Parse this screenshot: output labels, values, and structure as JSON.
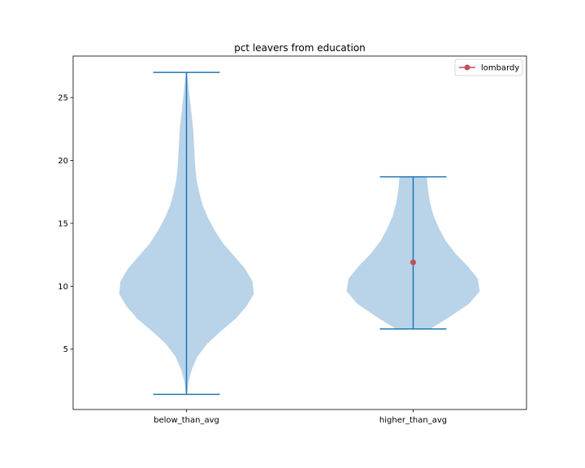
{
  "chart_data": {
    "type": "violin",
    "title": "pct leavers from education",
    "xlabel": "",
    "ylabel": "",
    "categories": [
      "below_than_avg",
      "higher_than_avg"
    ],
    "ylim": [
      0.2,
      28.3
    ],
    "yticks": [
      5,
      10,
      15,
      20,
      25
    ],
    "grid": false,
    "legend": {
      "placement": "top-right",
      "entries": [
        {
          "label": "lombardy",
          "color": "#c44e52",
          "marker": "circle"
        }
      ]
    },
    "violins": [
      {
        "category": "below_than_avg",
        "min": 1.4,
        "max": 27.0,
        "profile": [
          [
            1.4,
            0.008
          ],
          [
            2.4,
            0.03
          ],
          [
            3.4,
            0.08
          ],
          [
            4.4,
            0.16
          ],
          [
            5.4,
            0.3
          ],
          [
            6.4,
            0.5
          ],
          [
            7.4,
            0.72
          ],
          [
            8.4,
            0.88
          ],
          [
            9.4,
            0.99
          ],
          [
            10.4,
            0.97
          ],
          [
            11.4,
            0.86
          ],
          [
            12.4,
            0.7
          ],
          [
            13.4,
            0.54
          ],
          [
            14.4,
            0.42
          ],
          [
            15.4,
            0.32
          ],
          [
            16.4,
            0.24
          ],
          [
            17.4,
            0.19
          ],
          [
            18.4,
            0.15
          ],
          [
            19.4,
            0.13
          ],
          [
            20.4,
            0.12
          ],
          [
            21.4,
            0.11
          ],
          [
            22.4,
            0.1
          ],
          [
            23.4,
            0.08
          ],
          [
            24.4,
            0.06
          ],
          [
            25.4,
            0.04
          ],
          [
            26.4,
            0.02
          ],
          [
            27.0,
            0.005
          ]
        ],
        "color": "#1f77b4"
      },
      {
        "category": "higher_than_avg",
        "min": 6.6,
        "max": 18.7,
        "profile": [
          [
            6.6,
            0.25
          ],
          [
            7.6,
            0.55
          ],
          [
            8.6,
            0.82
          ],
          [
            9.6,
            0.98
          ],
          [
            10.6,
            0.95
          ],
          [
            11.6,
            0.8
          ],
          [
            12.6,
            0.62
          ],
          [
            13.6,
            0.48
          ],
          [
            14.6,
            0.38
          ],
          [
            15.6,
            0.3
          ],
          [
            16.6,
            0.25
          ],
          [
            17.6,
            0.22
          ],
          [
            18.7,
            0.2
          ]
        ],
        "color": "#1f77b4",
        "marker_value": 11.9
      }
    ],
    "marker_color": "#c44e52",
    "fill_color": "#b9d3e8",
    "line_color": "#1f77b4"
  }
}
